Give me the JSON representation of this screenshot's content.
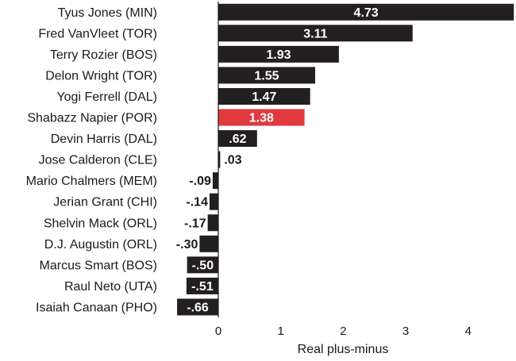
{
  "chart_data": {
    "type": "bar",
    "orientation": "horizontal",
    "title": "",
    "xlabel": "Real plus-minus",
    "ylabel": "",
    "xlim": [
      -0.8,
      4.73
    ],
    "xticks": [
      0,
      1,
      2,
      3,
      4
    ],
    "grid": false,
    "categories": [
      "Tyus Jones (MIN)",
      "Fred VanVleet (TOR)",
      "Terry Rozier (BOS)",
      "Delon Wright (TOR)",
      "Yogi Ferrell (DAL)",
      "Shabazz Napier (POR)",
      "Devin Harris (DAL)",
      "Jose Calderon (CLE)",
      "Mario Chalmers (MEM)",
      "Jerian Grant (CHI)",
      "Shelvin Mack (ORL)",
      "D.J. Augustin (ORL)",
      "Marcus Smart (BOS)",
      "Raul Neto (UTA)",
      "Isaiah Canaan (PHO)"
    ],
    "values": [
      4.73,
      3.11,
      1.93,
      1.55,
      1.47,
      1.38,
      0.62,
      0.03,
      -0.09,
      -0.14,
      -0.17,
      -0.3,
      -0.5,
      -0.51,
      -0.66
    ],
    "value_labels": [
      "4.73",
      "3.11",
      "1.93",
      "1.55",
      "1.47",
      "1.38",
      ".62",
      ".03",
      "-.09",
      "-.14",
      "-.17",
      "-.30",
      "-.50",
      "-.51",
      "-.66"
    ],
    "highlight_index": 5,
    "colors": {
      "bar": "#231f20",
      "highlight": "#e03a3e",
      "text": "#1a1a1a",
      "label_on_bar": "#ffffff"
    }
  }
}
